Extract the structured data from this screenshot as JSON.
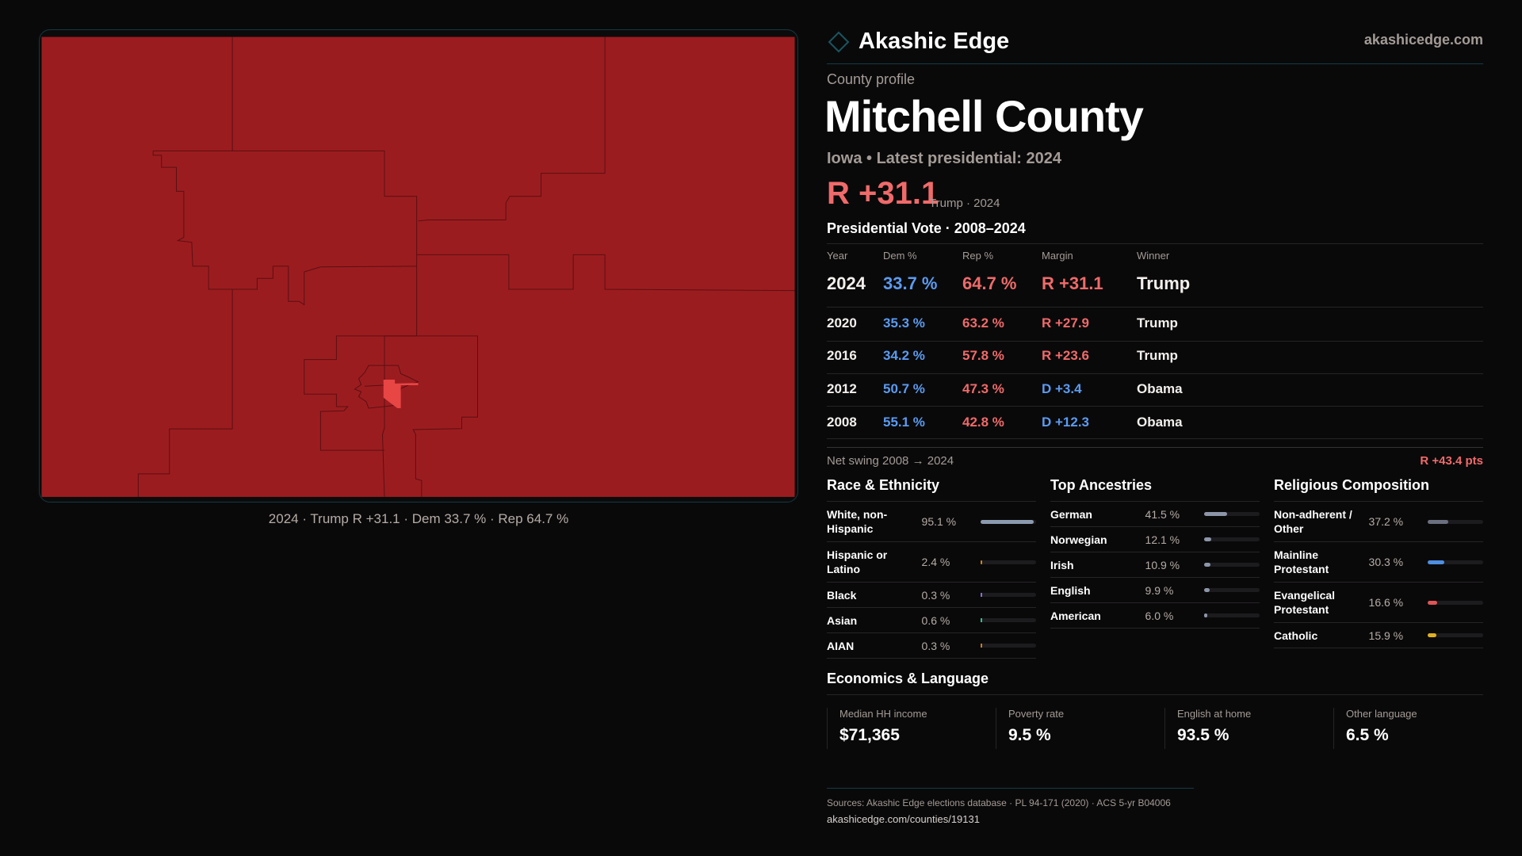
{
  "brand": {
    "name": "Akashic Edge",
    "site": "akashicedge.com",
    "logo_icon": "diamond-outline"
  },
  "colors": {
    "rep": "#f06a6a",
    "dem": "#5b9bf0",
    "map_county": "#9b1c1f",
    "map_highlight": "#e84545"
  },
  "profile": {
    "kicker": "County profile",
    "title": "Mitchell County",
    "subtitle": "Iowa • Latest presidential: 2024",
    "margin": "R +31.1",
    "margin_sub": "Trump · 2024"
  },
  "map": {
    "caption": "2024 · Trump R +31.1 · Dem 33.7 % · Rep 64.7 %"
  },
  "votes": {
    "title": "Presidential Vote · 2008–2024",
    "headers": [
      "Year",
      "Dem %",
      "Rep %",
      "Margin",
      "Winner"
    ],
    "rows": [
      {
        "year": "2024",
        "dem": "33.7 %",
        "rep": "64.7 %",
        "margin": "R +31.1",
        "party": "rep",
        "winner": "Trump"
      },
      {
        "year": "2020",
        "dem": "35.3 %",
        "rep": "63.2 %",
        "margin": "R +27.9",
        "party": "rep",
        "winner": "Trump"
      },
      {
        "year": "2016",
        "dem": "34.2 %",
        "rep": "57.8 %",
        "margin": "R +23.6",
        "party": "rep",
        "winner": "Trump"
      },
      {
        "year": "2012",
        "dem": "50.7 %",
        "rep": "47.3 %",
        "margin": "D +3.4",
        "party": "dem",
        "winner": "Obama"
      },
      {
        "year": "2008",
        "dem": "55.1 %",
        "rep": "42.8 %",
        "margin": "D +12.3",
        "party": "dem",
        "winner": "Obama"
      }
    ],
    "swing_label": "Net swing 2008 → 2024",
    "swing_value": "R +43.4 pts"
  },
  "sections": [
    {
      "title": "Race & Ethnicity",
      "rows": [
        {
          "label": "White, non-Hispanic",
          "value": "95.1 %",
          "pct": 95.1,
          "color": "#8c9ab0"
        },
        {
          "label": "Hispanic or Latino",
          "value": "2.4 %",
          "pct": 2.4,
          "color": "#d4861a"
        },
        {
          "label": "Black",
          "value": "0.3 %",
          "pct": 0.3,
          "color": "#8a6fd0"
        },
        {
          "label": "Asian",
          "value": "0.6 %",
          "pct": 0.6,
          "color": "#2fbf8f"
        },
        {
          "label": "AIAN",
          "value": "0.3 %",
          "pct": 0.3,
          "color": "#c87a2a"
        }
      ]
    },
    {
      "title": "Top Ancestries",
      "rows": [
        {
          "label": "German",
          "value": "41.5 %",
          "pct": 41.5,
          "color": "#8c96a8"
        },
        {
          "label": "Norwegian",
          "value": "12.1 %",
          "pct": 12.1,
          "color": "#8c96a8"
        },
        {
          "label": "Irish",
          "value": "10.9 %",
          "pct": 10.9,
          "color": "#8c96a8"
        },
        {
          "label": "English",
          "value": "9.9 %",
          "pct": 9.9,
          "color": "#8c96a8"
        },
        {
          "label": "American",
          "value": "6.0 %",
          "pct": 6.0,
          "color": "#8c96a8"
        }
      ]
    },
    {
      "title": "Religious Composition",
      "rows": [
        {
          "label": "Non-adherent / Other",
          "value": "37.2 %",
          "pct": 37.2,
          "color": "#6b7080"
        },
        {
          "label": "Mainline Protestant",
          "value": "30.3 %",
          "pct": 30.3,
          "color": "#4d8fe0"
        },
        {
          "label": "Evangelical Protestant",
          "value": "16.6 %",
          "pct": 16.6,
          "color": "#e05555"
        },
        {
          "label": "Catholic",
          "value": "15.9 %",
          "pct": 15.9,
          "color": "#e0b020"
        }
      ]
    }
  ],
  "economics": {
    "title": "Economics & Language",
    "metrics": [
      {
        "label": "Median HH income",
        "value": "$71,365"
      },
      {
        "label": "Poverty rate",
        "value": "9.5 %"
      },
      {
        "label": "English at home",
        "value": "93.5 %"
      },
      {
        "label": "Other language",
        "value": "6.5 %"
      }
    ]
  },
  "footer": {
    "sources": "Sources: Akashic Edge elections database · PL 94-171 (2020) · ACS 5-yr B04006",
    "url": "akashicedge.com/counties/19131"
  }
}
